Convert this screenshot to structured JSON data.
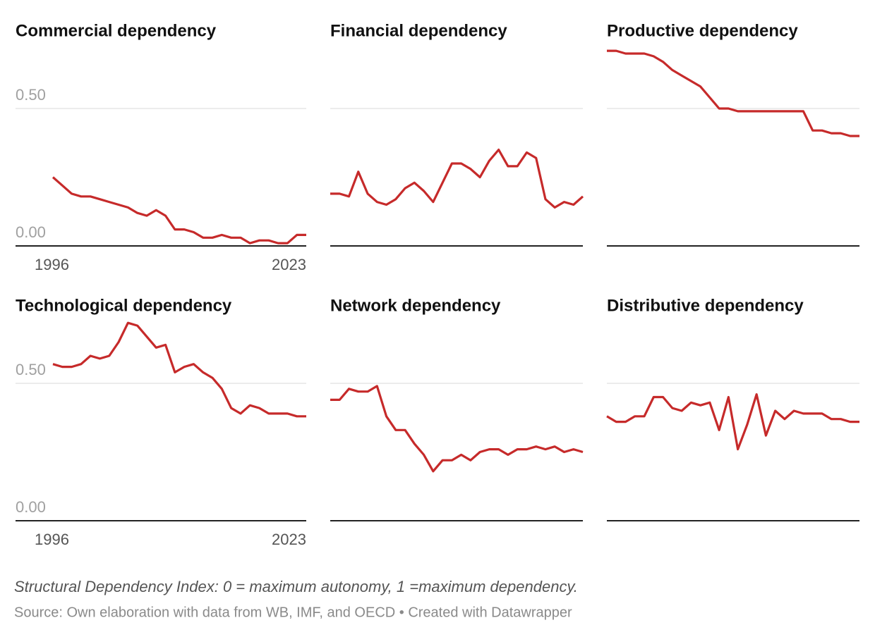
{
  "chart_data": [
    {
      "type": "line",
      "title": "Commercial dependency",
      "color": "#c62a2a",
      "ylim": [
        0,
        0.75
      ],
      "yticks": [
        {
          "value": 0,
          "label": "0.00"
        },
        {
          "value": 0.5,
          "label": "0.50"
        }
      ],
      "ytick_labels": true,
      "xticks": [
        1996,
        2023
      ],
      "x": [
        1996,
        1997,
        1998,
        1999,
        2000,
        2001,
        2002,
        2003,
        2004,
        2005,
        2006,
        2007,
        2008,
        2009,
        2010,
        2011,
        2012,
        2013,
        2014,
        2015,
        2016,
        2017,
        2018,
        2019,
        2020,
        2021,
        2022,
        2023
      ],
      "values": [
        0.25,
        0.22,
        0.19,
        0.18,
        0.18,
        0.17,
        0.16,
        0.15,
        0.14,
        0.12,
        0.11,
        0.13,
        0.11,
        0.06,
        0.06,
        0.05,
        0.03,
        0.03,
        0.04,
        0.03,
        0.03,
        0.01,
        0.02,
        0.02,
        0.01,
        0.01,
        0.04,
        0.04
      ]
    },
    {
      "type": "line",
      "title": "Financial dependency",
      "color": "#c62a2a",
      "ylim": [
        0,
        0.75
      ],
      "yticks": [
        {
          "value": 0,
          "label": "0.00"
        },
        {
          "value": 0.5,
          "label": "0.50"
        }
      ],
      "ytick_labels": false,
      "x": [
        1996,
        1997,
        1998,
        1999,
        2000,
        2001,
        2002,
        2003,
        2004,
        2005,
        2006,
        2007,
        2008,
        2009,
        2010,
        2011,
        2012,
        2013,
        2014,
        2015,
        2016,
        2017,
        2018,
        2019,
        2020,
        2021,
        2022,
        2023
      ],
      "values": [
        0.19,
        0.19,
        0.18,
        0.27,
        0.19,
        0.16,
        0.15,
        0.17,
        0.21,
        0.23,
        0.2,
        0.16,
        0.23,
        0.3,
        0.3,
        0.28,
        0.25,
        0.31,
        0.35,
        0.29,
        0.29,
        0.34,
        0.32,
        0.17,
        0.14,
        0.16,
        0.15,
        0.18
      ]
    },
    {
      "type": "line",
      "title": "Productive dependency",
      "color": "#c62a2a",
      "ylim": [
        0,
        0.75
      ],
      "yticks": [
        {
          "value": 0,
          "label": "0.00"
        },
        {
          "value": 0.5,
          "label": "0.50"
        }
      ],
      "ytick_labels": false,
      "x": [
        1996,
        1997,
        1998,
        1999,
        2000,
        2001,
        2002,
        2003,
        2004,
        2005,
        2006,
        2007,
        2008,
        2009,
        2010,
        2011,
        2012,
        2013,
        2014,
        2015,
        2016,
        2017,
        2018,
        2019,
        2020,
        2021,
        2022,
        2023
      ],
      "values": [
        0.71,
        0.71,
        0.7,
        0.7,
        0.7,
        0.69,
        0.67,
        0.64,
        0.62,
        0.6,
        0.58,
        0.54,
        0.5,
        0.5,
        0.49,
        0.49,
        0.49,
        0.49,
        0.49,
        0.49,
        0.49,
        0.49,
        0.42,
        0.42,
        0.41,
        0.41,
        0.4,
        0.4
      ]
    },
    {
      "type": "line",
      "title": "Technological dependency",
      "color": "#c62a2a",
      "ylim": [
        0,
        0.75
      ],
      "yticks": [
        {
          "value": 0,
          "label": "0.00"
        },
        {
          "value": 0.5,
          "label": "0.50"
        }
      ],
      "ytick_labels": true,
      "xticks": [
        1996,
        2023
      ],
      "x": [
        1996,
        1997,
        1998,
        1999,
        2000,
        2001,
        2002,
        2003,
        2004,
        2005,
        2006,
        2007,
        2008,
        2009,
        2010,
        2011,
        2012,
        2013,
        2014,
        2015,
        2016,
        2017,
        2018,
        2019,
        2020,
        2021,
        2022,
        2023
      ],
      "values": [
        0.57,
        0.56,
        0.56,
        0.57,
        0.6,
        0.59,
        0.6,
        0.65,
        0.72,
        0.71,
        0.67,
        0.63,
        0.64,
        0.54,
        0.56,
        0.57,
        0.54,
        0.52,
        0.48,
        0.41,
        0.39,
        0.42,
        0.41,
        0.39,
        0.39,
        0.39,
        0.38,
        0.38
      ]
    },
    {
      "type": "line",
      "title": "Network dependency",
      "color": "#c62a2a",
      "ylim": [
        0,
        0.75
      ],
      "yticks": [
        {
          "value": 0,
          "label": "0.00"
        },
        {
          "value": 0.5,
          "label": "0.50"
        }
      ],
      "ytick_labels": false,
      "x": [
        1996,
        1997,
        1998,
        1999,
        2000,
        2001,
        2002,
        2003,
        2004,
        2005,
        2006,
        2007,
        2008,
        2009,
        2010,
        2011,
        2012,
        2013,
        2014,
        2015,
        2016,
        2017,
        2018,
        2019,
        2020,
        2021,
        2022,
        2023
      ],
      "values": [
        0.44,
        0.44,
        0.48,
        0.47,
        0.47,
        0.49,
        0.38,
        0.33,
        0.33,
        0.28,
        0.24,
        0.18,
        0.22,
        0.22,
        0.24,
        0.22,
        0.25,
        0.26,
        0.26,
        0.24,
        0.26,
        0.26,
        0.27,
        0.26,
        0.27,
        0.25,
        0.26,
        0.25
      ]
    },
    {
      "type": "line",
      "title": "Distributive dependency",
      "color": "#c62a2a",
      "ylim": [
        0,
        0.75
      ],
      "yticks": [
        {
          "value": 0,
          "label": "0.00"
        },
        {
          "value": 0.5,
          "label": "0.50"
        }
      ],
      "ytick_labels": false,
      "x": [
        1996,
        1997,
        1998,
        1999,
        2000,
        2001,
        2002,
        2003,
        2004,
        2005,
        2006,
        2007,
        2008,
        2009,
        2010,
        2011,
        2012,
        2013,
        2014,
        2015,
        2016,
        2017,
        2018,
        2019,
        2020,
        2021,
        2022,
        2023
      ],
      "values": [
        0.38,
        0.36,
        0.36,
        0.38,
        0.38,
        0.45,
        0.45,
        0.41,
        0.4,
        0.43,
        0.42,
        0.43,
        0.33,
        0.45,
        0.26,
        0.35,
        0.46,
        0.31,
        0.4,
        0.37,
        0.4,
        0.39,
        0.39,
        0.39,
        0.37,
        0.37,
        0.36,
        0.36
      ]
    }
  ],
  "note": "Structural Dependency Index: 0 = maximum autonomy, 1 =maximum dependency.",
  "source": "Source: Own elaboration with data from WB, IMF, and OECD • Created with Datawrapper"
}
